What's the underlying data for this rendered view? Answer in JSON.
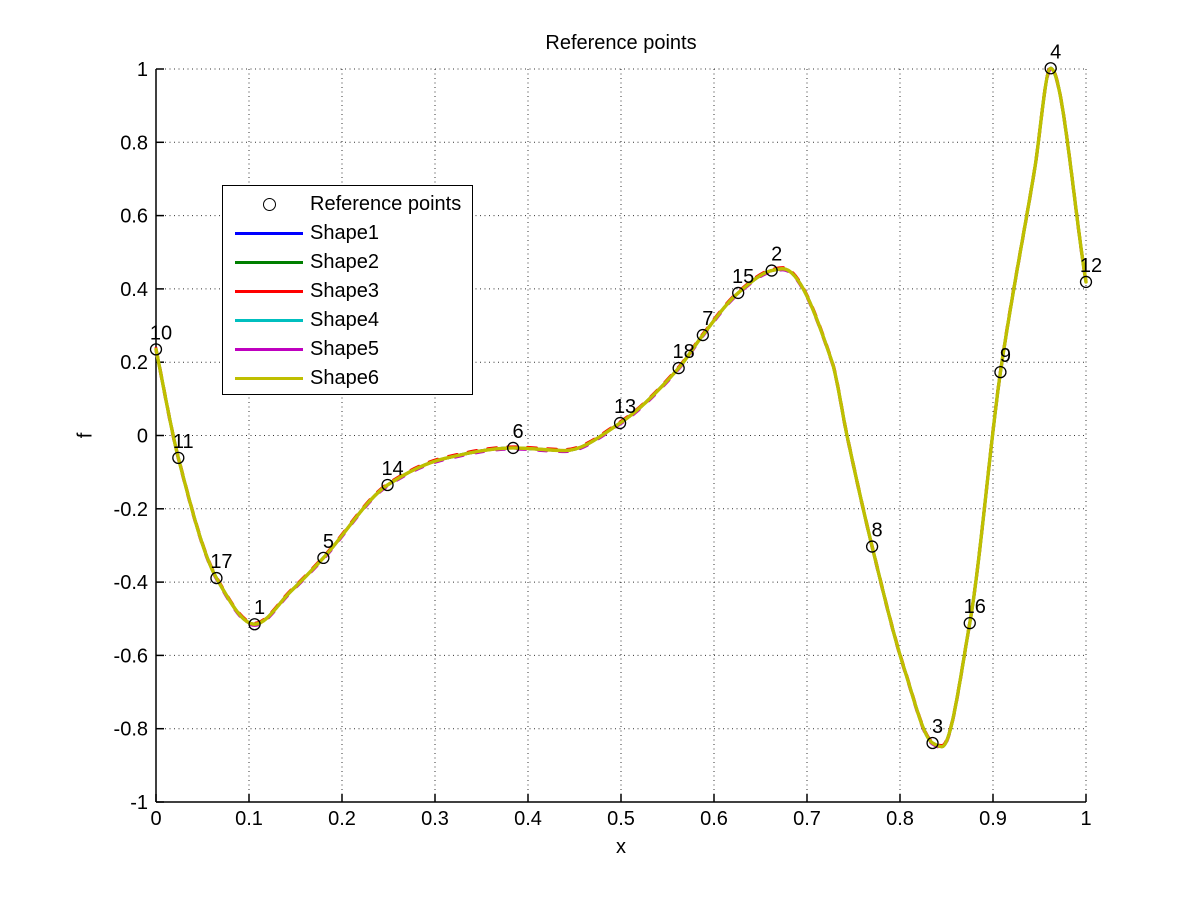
{
  "chart_data": {
    "type": "line",
    "title": "Reference points",
    "xlabel": "x",
    "ylabel": "f",
    "xlim": [
      0,
      1
    ],
    "ylim": [
      -1,
      1
    ],
    "grid": "dotted",
    "legend_position": "upper-left-inside",
    "x_tick_values": [
      0,
      0.1,
      0.2,
      0.3,
      0.4,
      0.5,
      0.6,
      0.7,
      0.8,
      0.9,
      1
    ],
    "x_tick_labels": [
      "0",
      "0.1",
      "0.2",
      "0.3",
      "0.4",
      "0.5",
      "0.6",
      "0.7",
      "0.8",
      "0.9",
      "1"
    ],
    "y_tick_values": [
      -1,
      -0.8,
      -0.6,
      -0.4,
      -0.2,
      0,
      0.2,
      0.4,
      0.6,
      0.8,
      1
    ],
    "y_tick_labels": [
      "-1",
      "-0.8",
      "-0.6",
      "-0.4",
      "-0.2",
      "0",
      "0.2",
      "0.4",
      "0.6",
      "0.8",
      "1"
    ],
    "reference_points": [
      {
        "label": "1",
        "x": 0.106,
        "y": -0.515
      },
      {
        "label": "2",
        "x": 0.662,
        "y": 0.45
      },
      {
        "label": "3",
        "x": 0.835,
        "y": -0.839
      },
      {
        "label": "4",
        "x": 0.962,
        "y": 1.002
      },
      {
        "label": "5",
        "x": 0.18,
        "y": -0.334
      },
      {
        "label": "6",
        "x": 0.384,
        "y": -0.034
      },
      {
        "label": "7",
        "x": 0.588,
        "y": 0.274
      },
      {
        "label": "8",
        "x": 0.77,
        "y": -0.303
      },
      {
        "label": "9",
        "x": 0.908,
        "y": 0.173
      },
      {
        "label": "10",
        "x": 0.0,
        "y": 0.235
      },
      {
        "label": "11",
        "x": 0.024,
        "y": -0.061
      },
      {
        "label": "12",
        "x": 1.0,
        "y": 0.419
      },
      {
        "label": "13",
        "x": 0.499,
        "y": 0.034
      },
      {
        "label": "14",
        "x": 0.249,
        "y": -0.135
      },
      {
        "label": "15",
        "x": 0.626,
        "y": 0.389
      },
      {
        "label": "16",
        "x": 0.875,
        "y": -0.512
      },
      {
        "label": "17",
        "x": 0.065,
        "y": -0.389
      },
      {
        "label": "18",
        "x": 0.562,
        "y": 0.184
      }
    ],
    "curve_samples": {
      "x": [
        0.0,
        0.024,
        0.065,
        0.106,
        0.145,
        0.18,
        0.249,
        0.31,
        0.384,
        0.44,
        0.499,
        0.562,
        0.588,
        0.626,
        0.662,
        0.674,
        0.727,
        0.743,
        0.77,
        0.805,
        0.835,
        0.845,
        0.875,
        0.908,
        0.945,
        0.962,
        1.0
      ],
      "y": [
        0.235,
        -0.061,
        -0.389,
        -0.515,
        -0.425,
        -0.334,
        -0.135,
        -0.063,
        -0.034,
        -0.041,
        0.034,
        0.184,
        0.274,
        0.389,
        0.45,
        0.455,
        0.2,
        0.0,
        -0.303,
        -0.64,
        -0.839,
        -0.849,
        -0.512,
        0.173,
        0.73,
        1.002,
        0.419
      ]
    },
    "series": [
      {
        "name": "Shape1",
        "color": "#0000FF"
      },
      {
        "name": "Shape2",
        "color": "#007F00"
      },
      {
        "name": "Shape3",
        "color": "#FF0000"
      },
      {
        "name": "Shape4",
        "color": "#00BFBF"
      },
      {
        "name": "Shape5",
        "color": "#BF00BF"
      },
      {
        "name": "Shape6",
        "color": "#BFBF00"
      }
    ]
  },
  "legend": {
    "items": [
      {
        "label": "Reference points",
        "marker": "circle",
        "color": "#000000"
      },
      {
        "label": "Shape1",
        "marker": "line",
        "color": "#0000FF"
      },
      {
        "label": "Shape2",
        "marker": "line",
        "color": "#007F00"
      },
      {
        "label": "Shape3",
        "marker": "line",
        "color": "#FF0000"
      },
      {
        "label": "Shape4",
        "marker": "line",
        "color": "#00BFBF"
      },
      {
        "label": "Shape5",
        "marker": "line",
        "color": "#BF00BF"
      },
      {
        "label": "Shape6",
        "marker": "line",
        "color": "#BFBF00"
      }
    ]
  },
  "colors": {
    "axis": "#000000",
    "grid": "#333333",
    "background": "#FFFFFF",
    "text": "#000000"
  }
}
